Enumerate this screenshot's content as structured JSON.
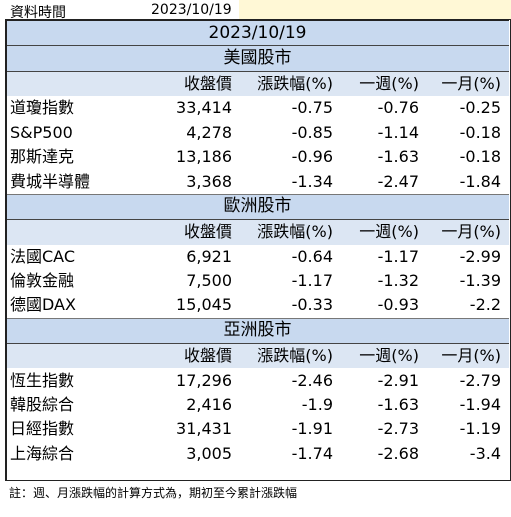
{
  "info": {
    "label": "資料時間",
    "date": "2023/10/19"
  },
  "title": "2023/10/19",
  "columns": [
    "收盤價",
    "漲跌幅(%)",
    "一週(%)",
    "一月(%)"
  ],
  "sections": [
    {
      "title": "美國股市",
      "rows": [
        {
          "name": "道瓊指數",
          "close": "33,414",
          "chg": "-0.75",
          "week": "-0.76",
          "month": "-0.25"
        },
        {
          "name": "S&P500",
          "close": "4,278",
          "chg": "-0.85",
          "week": "-1.14",
          "month": "-0.18"
        },
        {
          "name": "那斯達克",
          "close": "13,186",
          "chg": "-0.96",
          "week": "-1.63",
          "month": "-0.18"
        },
        {
          "name": "費城半導體",
          "close": "3,368",
          "chg": "-1.34",
          "week": "-2.47",
          "month": "-1.84"
        }
      ]
    },
    {
      "title": "歐洲股市",
      "rows": [
        {
          "name": "法國CAC",
          "close": "6,921",
          "chg": "-0.64",
          "week": "-1.17",
          "month": "-2.99"
        },
        {
          "name": "倫敦金融",
          "close": "7,500",
          "chg": "-1.17",
          "week": "-1.32",
          "month": "-1.39"
        },
        {
          "name": "德國DAX",
          "close": "15,045",
          "chg": "-0.33",
          "week": "-0.93",
          "month": "-2.2"
        }
      ]
    },
    {
      "title": "亞洲股市",
      "rows": [
        {
          "name": "恆生指數",
          "close": "17,296",
          "chg": "-2.46",
          "week": "-2.91",
          "month": "-2.79"
        },
        {
          "name": "韓股綜合",
          "close": "2,416",
          "chg": "-1.9",
          "week": "-1.63",
          "month": "-1.94"
        },
        {
          "name": "日經指數",
          "close": "31,431",
          "chg": "-1.91",
          "week": "-2.73",
          "month": "-1.19"
        },
        {
          "name": "上海綜合",
          "close": "3,005",
          "chg": "-1.74",
          "week": "-2.68",
          "month": "-3.4"
        }
      ]
    }
  ],
  "note": "註：週、月漲跌幅的計算方式為，期初至今累計漲跌幅"
}
